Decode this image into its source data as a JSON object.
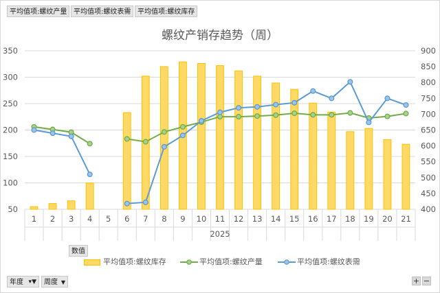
{
  "field_buttons": [
    "平均值项:螺纹产量",
    "平均值项:螺纹表需",
    "平均值项:螺纹库存"
  ],
  "chart_data": {
    "type": "bar+line",
    "title": "螺纹产销存趋势（周）",
    "categories": [
      "1",
      "2",
      "3",
      "4",
      "5",
      "6",
      "7",
      "8",
      "9",
      "10",
      "11",
      "12",
      "13",
      "14",
      "15",
      "16",
      "17",
      "18",
      "19",
      "20",
      "21"
    ],
    "year_label": "2025",
    "y_left": {
      "min": 50,
      "max": 350,
      "ticks": [
        50,
        100,
        150,
        200,
        250,
        300,
        350
      ]
    },
    "y_right": {
      "min": 400,
      "max": 900,
      "ticks": [
        400,
        450,
        500,
        550,
        600,
        650,
        700,
        750,
        800,
        850,
        900
      ]
    },
    "series": [
      {
        "name": "平均值项:螺纹库存",
        "axis": "left",
        "kind": "bar",
        "color": "#ffc000",
        "values": [
          55,
          61,
          66,
          100,
          null,
          233,
          302,
          320,
          329,
          326,
          322,
          312,
          302,
          289,
          277,
          251,
          234,
          197,
          203,
          182,
          173
        ]
      },
      {
        "name": "平均值项:螺纹产量",
        "axis": "right",
        "kind": "line",
        "color": "#70ad47",
        "values": [
          660,
          652,
          643,
          607,
          null,
          622,
          613,
          644,
          660,
          675,
          692,
          692,
          694,
          697,
          703,
          698,
          698,
          704,
          688,
          693,
          702
        ]
      },
      {
        "name": "平均值项:螺纹表需",
        "axis": "right",
        "kind": "line",
        "color": "#5b9bd5",
        "values": [
          650,
          640,
          630,
          510,
          null,
          418,
          422,
          597,
          633,
          679,
          706,
          720,
          723,
          730,
          736,
          773,
          750,
          802,
          674,
          750,
          729
        ]
      }
    ],
    "gridlines": true,
    "legend_position": "bottom"
  },
  "axis_buttons": {
    "values_label": "数值",
    "week_label": "周度",
    "year_label": "年度"
  },
  "zoom": {
    "plus": "+",
    "minus": "−"
  }
}
